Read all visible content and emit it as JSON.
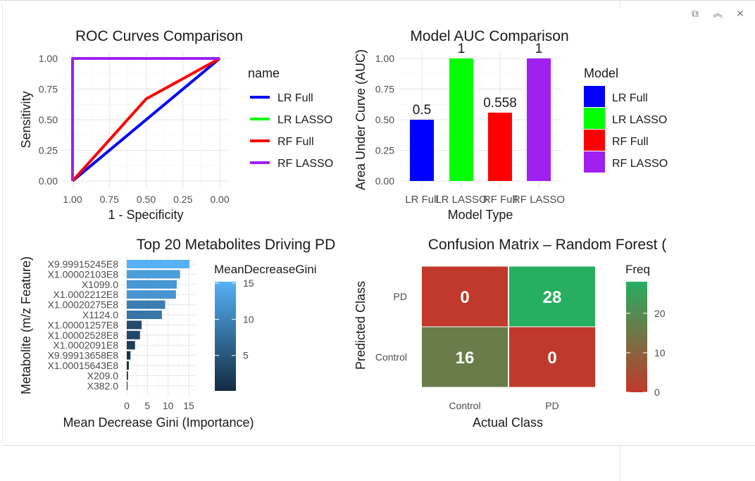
{
  "window": {
    "buttons": [
      {
        "name": "popout-icon",
        "glyph": "⧉"
      },
      {
        "name": "collapse-icon",
        "glyph": "︽"
      },
      {
        "name": "close-icon",
        "glyph": "✕"
      }
    ]
  },
  "chart_data": [
    {
      "type": "line",
      "title": "ROC Curves Comparison",
      "xlabel": "1 - Specificity",
      "ylabel": "Sensitivity",
      "x_reversed": true,
      "xlim": [
        1.0,
        0.0
      ],
      "ylim": [
        0.0,
        1.0
      ],
      "xticks": [
        "1.00",
        "0.75",
        "0.50",
        "0.25",
        "0.00"
      ],
      "yticks": [
        "0.00",
        "0.25",
        "0.50",
        "0.75",
        "1.00"
      ],
      "legend_title": "name",
      "legend_position": "right",
      "grid": true,
      "series": [
        {
          "name": "LR Full",
          "color": "#0000ff",
          "x": [
            1.0,
            0.0
          ],
          "y": [
            0.0,
            1.0
          ]
        },
        {
          "name": "LR LASSO",
          "color": "#00ff00",
          "x": [
            1.0,
            1.0,
            0.0
          ],
          "y": [
            0.0,
            1.0,
            1.0
          ]
        },
        {
          "name": "RF Full",
          "color": "#ff0000",
          "x": [
            1.0,
            0.5,
            0.0
          ],
          "y": [
            0.0,
            0.67,
            1.0
          ]
        },
        {
          "name": "RF LASSO",
          "color": "#a020f0",
          "x": [
            1.0,
            1.0,
            0.0
          ],
          "y": [
            0.0,
            1.0,
            1.0
          ]
        }
      ]
    },
    {
      "type": "bar",
      "title": "Model AUC Comparison",
      "xlabel": "Model Type",
      "ylabel": "Area Under Curve (AUC)",
      "ylim": [
        0.0,
        1.0
      ],
      "yticks": [
        "0.00",
        "0.25",
        "0.50",
        "0.75",
        "1.00"
      ],
      "categories": [
        "LR Full",
        "LR LASSO",
        "RF Full",
        "RF LASSO"
      ],
      "values": [
        0.5,
        1.0,
        0.558,
        1.0
      ],
      "data_labels": [
        "0.5",
        "1",
        "0.558",
        "1"
      ],
      "colors": [
        "#0000ff",
        "#00ff00",
        "#ff0000",
        "#a020f0"
      ],
      "legend_title": "Model",
      "legend_position": "right",
      "legend_entries": [
        "LR Full",
        "LR LASSO",
        "RF Full",
        "RF LASSO"
      ],
      "grid": true
    },
    {
      "type": "bar",
      "orientation": "horizontal",
      "title": "Top 20 Metabolites Driving PD",
      "xlabel": "Mean Decrease Gini (Importance)",
      "ylabel": "Metabolite (m/z Feature)",
      "xlim": [
        0,
        16
      ],
      "xticks": [
        "0",
        "5",
        "10",
        "15"
      ],
      "categories": [
        "X9.99915245E8",
        "X1.00002103E8",
        "X1099.0",
        "X1.0002212E8",
        "X1.00020275E8",
        "X1124.0",
        "X1.00001257E8",
        "X1.00002528E8",
        "X1.0002091E8",
        "X9.99913658E8",
        "X1.00015643E8",
        "X209.0",
        "X382.0"
      ],
      "values": [
        15.2,
        12.9,
        12.1,
        11.9,
        9.3,
        8.5,
        3.6,
        3.2,
        2.0,
        0.9,
        0.5,
        0.3,
        0.1
      ],
      "legend_title": "MeanDecreaseGini",
      "legend_position": "right",
      "legend_ticks": [
        "5",
        "10",
        "15"
      ],
      "color_low": "#132b43",
      "color_high": "#56b1f7",
      "grid": true
    },
    {
      "type": "heatmap",
      "title": "Confusion Matrix – Random Forest (",
      "xlabel": "Actual Class",
      "ylabel": "Predicted Class",
      "x_categories": [
        "Control",
        "PD"
      ],
      "y_categories": [
        "PD",
        "Control"
      ],
      "cells": [
        {
          "x": "Control",
          "y": "PD",
          "value": 0
        },
        {
          "x": "PD",
          "y": "PD",
          "value": 28
        },
        {
          "x": "Control",
          "y": "Control",
          "value": 16
        },
        {
          "x": "PD",
          "y": "Control",
          "value": 0
        }
      ],
      "legend_title": "Freq",
      "legend_position": "right",
      "legend_ticks": [
        "0",
        "10",
        "20"
      ],
      "color_low": "#c0392b",
      "color_high": "#27ae60",
      "range": [
        0,
        28
      ]
    }
  ]
}
